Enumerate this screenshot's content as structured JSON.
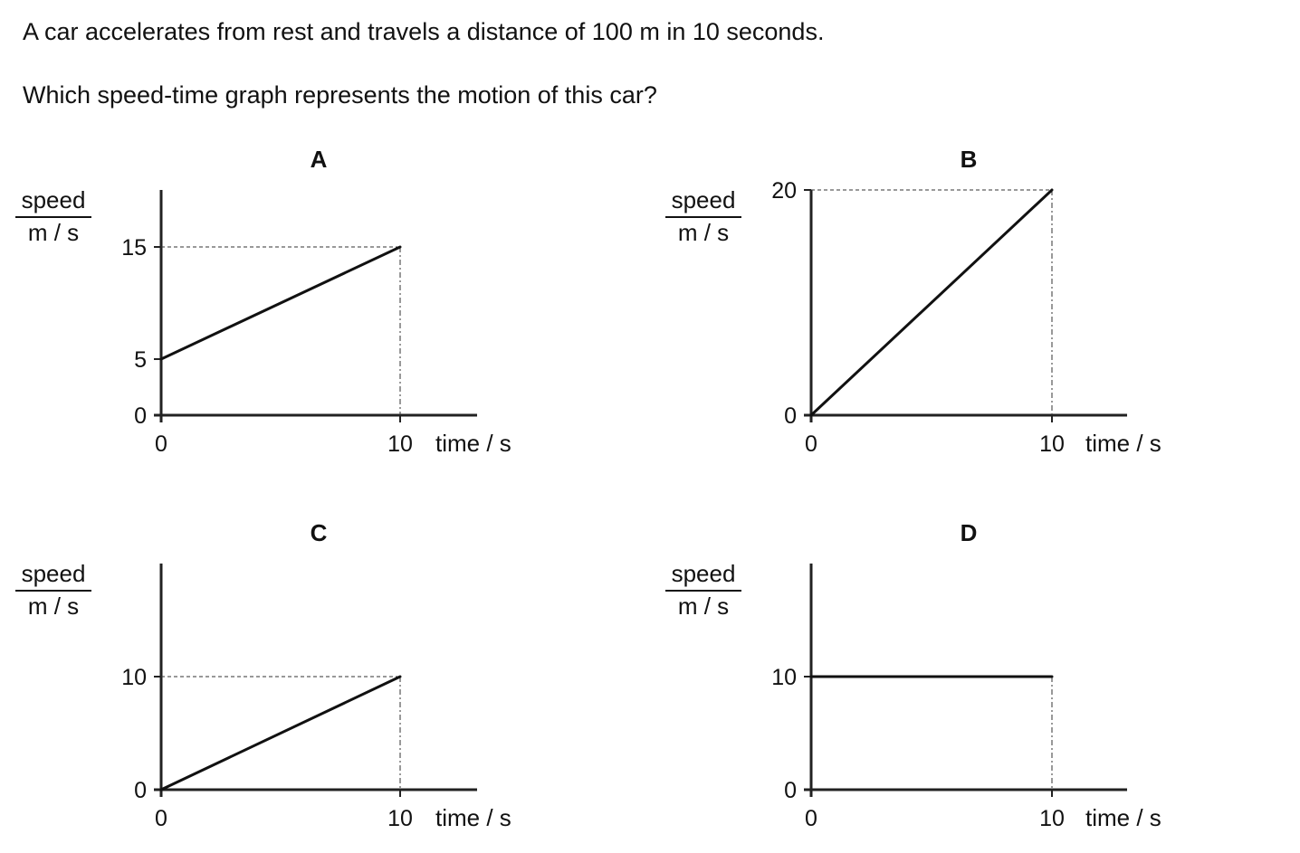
{
  "question": {
    "line1": "A car accelerates from rest and travels a distance of 100 m in 10 seconds.",
    "line2": "Which speed-time graph represents the motion of this car?"
  },
  "graphs": [
    {
      "label": "A",
      "y_unit_top": "speed",
      "y_unit_bottom": "m / s",
      "x_unit": "time / s",
      "x_ticks": [
        "0",
        "10"
      ],
      "y_ticks": [
        "0",
        "5",
        "15"
      ],
      "line": {
        "x": [
          0,
          10
        ],
        "y": [
          5,
          15
        ]
      }
    },
    {
      "label": "B",
      "y_unit_top": "speed",
      "y_unit_bottom": "m / s",
      "x_unit": "time / s",
      "x_ticks": [
        "0",
        "10"
      ],
      "y_ticks": [
        "0",
        "20"
      ],
      "line": {
        "x": [
          0,
          10
        ],
        "y": [
          0,
          20
        ]
      }
    },
    {
      "label": "C",
      "y_unit_top": "speed",
      "y_unit_bottom": "m / s",
      "x_unit": "time / s",
      "x_ticks": [
        "0",
        "10"
      ],
      "y_ticks": [
        "0",
        "10"
      ],
      "line": {
        "x": [
          0,
          10
        ],
        "y": [
          0,
          10
        ]
      }
    },
    {
      "label": "D",
      "y_unit_top": "speed",
      "y_unit_bottom": "m / s",
      "x_unit": "time / s",
      "x_ticks": [
        "0",
        "10"
      ],
      "y_ticks": [
        "0",
        "10"
      ],
      "line": {
        "x": [
          0,
          10
        ],
        "y": [
          10,
          10
        ]
      }
    }
  ]
}
